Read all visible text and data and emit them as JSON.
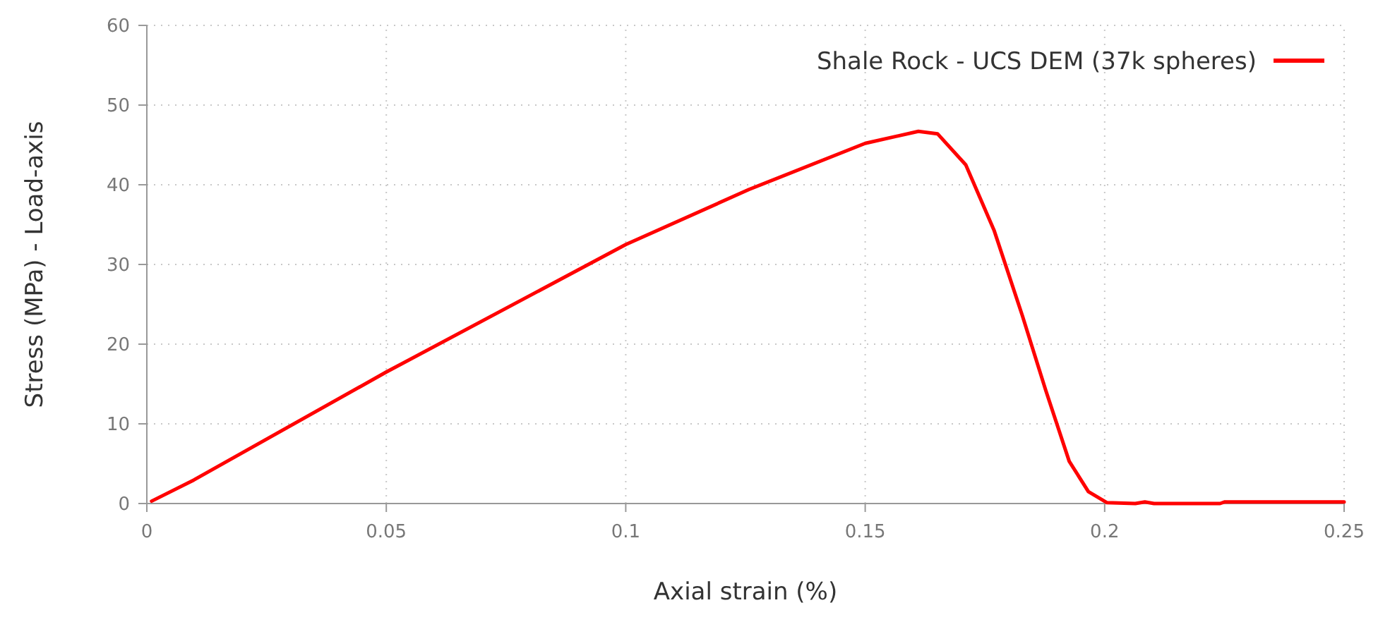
{
  "chart_data": {
    "type": "line",
    "xlabel": "Axial strain (%)",
    "ylabel": "Stress (MPa) - Load-axis",
    "xlim": [
      0,
      0.25
    ],
    "ylim": [
      0,
      60
    ],
    "xticks": [
      0,
      0.05,
      0.1,
      0.15,
      0.2,
      0.25
    ],
    "yticks": [
      0,
      10,
      20,
      30,
      40,
      50,
      60
    ],
    "grid": true,
    "legend": "top right",
    "marker": "none",
    "line_style": "solid",
    "series": [
      {
        "name": "Shale Rock - UCS DEM (37k spheres)",
        "color": "#ff0000",
        "x": [
          0.001,
          0.0098,
          0.05,
          0.1,
          0.1257,
          0.15,
          0.1611,
          0.1651,
          0.171,
          0.1769,
          0.1828,
          0.1877,
          0.1926,
          0.1966,
          0.2005,
          0.2064,
          0.2084,
          0.2103,
          0.2241,
          0.2251,
          0.25
        ],
        "values": [
          0.3,
          2.95,
          16.5,
          32.5,
          39.4,
          45.2,
          46.7,
          46.4,
          42.5,
          34.3,
          23.6,
          14.2,
          5.3,
          1.5,
          0.1,
          0,
          0.2,
          0,
          0,
          0.2,
          0.2
        ]
      }
    ]
  }
}
